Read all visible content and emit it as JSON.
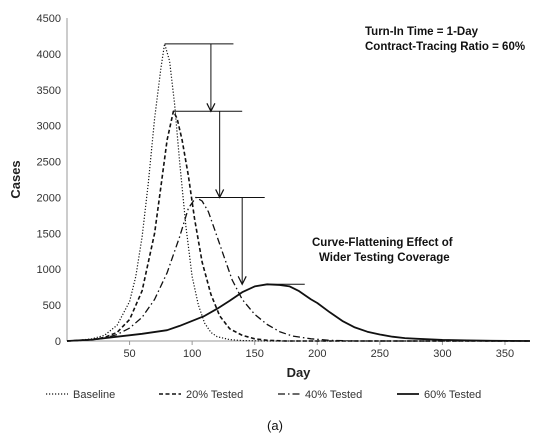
{
  "chart_data": {
    "type": "line",
    "xlabel": "Day",
    "ylabel": "Cases",
    "xlim": [
      0,
      370
    ],
    "ylim": [
      0,
      4500
    ],
    "xticks": [
      50,
      100,
      150,
      200,
      250,
      300,
      350
    ],
    "yticks": [
      0,
      500,
      1000,
      1500,
      2000,
      2500,
      3000,
      3500,
      4000,
      4500
    ],
    "grid": false,
    "legend_position": "bottom",
    "annotations": {
      "turn_in_time": "Turn-In Time = 1-Day",
      "tracing_ratio": "Contract-Tracing Ratio = 60%",
      "effect_line1": "Curve-Flattening Effect of",
      "effect_line2": "Wider Testing Coverage"
    },
    "caption": "(a)",
    "series": [
      {
        "name": "Baseline",
        "style": "dotted",
        "points": [
          [
            0,
            0
          ],
          [
            10,
            10
          ],
          [
            20,
            30
          ],
          [
            30,
            80
          ],
          [
            40,
            220
          ],
          [
            50,
            550
          ],
          [
            55,
            900
          ],
          [
            60,
            1450
          ],
          [
            65,
            2200
          ],
          [
            70,
            3100
          ],
          [
            75,
            3800
          ],
          [
            78,
            4140
          ],
          [
            82,
            3900
          ],
          [
            86,
            3300
          ],
          [
            90,
            2500
          ],
          [
            95,
            1600
          ],
          [
            100,
            900
          ],
          [
            105,
            500
          ],
          [
            110,
            250
          ],
          [
            115,
            120
          ],
          [
            120,
            60
          ],
          [
            130,
            20
          ],
          [
            140,
            5
          ],
          [
            160,
            0
          ],
          [
            370,
            0
          ]
        ]
      },
      {
        "name": "20% Tested",
        "style": "dashed",
        "points": [
          [
            0,
            0
          ],
          [
            20,
            20
          ],
          [
            30,
            50
          ],
          [
            40,
            120
          ],
          [
            50,
            300
          ],
          [
            60,
            700
          ],
          [
            70,
            1500
          ],
          [
            75,
            2150
          ],
          [
            80,
            2800
          ],
          [
            85,
            3200
          ],
          [
            88,
            3100
          ],
          [
            92,
            2800
          ],
          [
            97,
            2300
          ],
          [
            102,
            1700
          ],
          [
            108,
            1100
          ],
          [
            115,
            650
          ],
          [
            122,
            350
          ],
          [
            130,
            170
          ],
          [
            140,
            80
          ],
          [
            150,
            30
          ],
          [
            160,
            10
          ],
          [
            175,
            0
          ],
          [
            370,
            0
          ]
        ]
      },
      {
        "name": "40% Tested",
        "style": "dashdot",
        "points": [
          [
            0,
            0
          ],
          [
            20,
            15
          ],
          [
            30,
            40
          ],
          [
            40,
            90
          ],
          [
            50,
            180
          ],
          [
            60,
            330
          ],
          [
            70,
            580
          ],
          [
            80,
            950
          ],
          [
            90,
            1450
          ],
          [
            97,
            1850
          ],
          [
            103,
            2000
          ],
          [
            108,
            1950
          ],
          [
            113,
            1800
          ],
          [
            118,
            1550
          ],
          [
            125,
            1200
          ],
          [
            132,
            850
          ],
          [
            140,
            580
          ],
          [
            150,
            370
          ],
          [
            160,
            230
          ],
          [
            170,
            130
          ],
          [
            180,
            70
          ],
          [
            195,
            30
          ],
          [
            210,
            10
          ],
          [
            230,
            0
          ],
          [
            370,
            0
          ]
        ]
      },
      {
        "name": "60% Tested",
        "style": "solid",
        "points": [
          [
            0,
            0
          ],
          [
            20,
            20
          ],
          [
            40,
            60
          ],
          [
            60,
            100
          ],
          [
            80,
            150
          ],
          [
            90,
            210
          ],
          [
            100,
            280
          ],
          [
            110,
            350
          ],
          [
            120,
            450
          ],
          [
            130,
            560
          ],
          [
            140,
            680
          ],
          [
            150,
            760
          ],
          [
            160,
            790
          ],
          [
            170,
            780
          ],
          [
            178,
            760
          ],
          [
            185,
            700
          ],
          [
            190,
            640
          ],
          [
            195,
            580
          ],
          [
            200,
            530
          ],
          [
            210,
            400
          ],
          [
            220,
            280
          ],
          [
            230,
            190
          ],
          [
            240,
            130
          ],
          [
            250,
            90
          ],
          [
            260,
            60
          ],
          [
            270,
            40
          ],
          [
            280,
            30
          ],
          [
            300,
            15
          ],
          [
            320,
            8
          ],
          [
            340,
            3
          ],
          [
            370,
            0
          ]
        ]
      }
    ]
  }
}
